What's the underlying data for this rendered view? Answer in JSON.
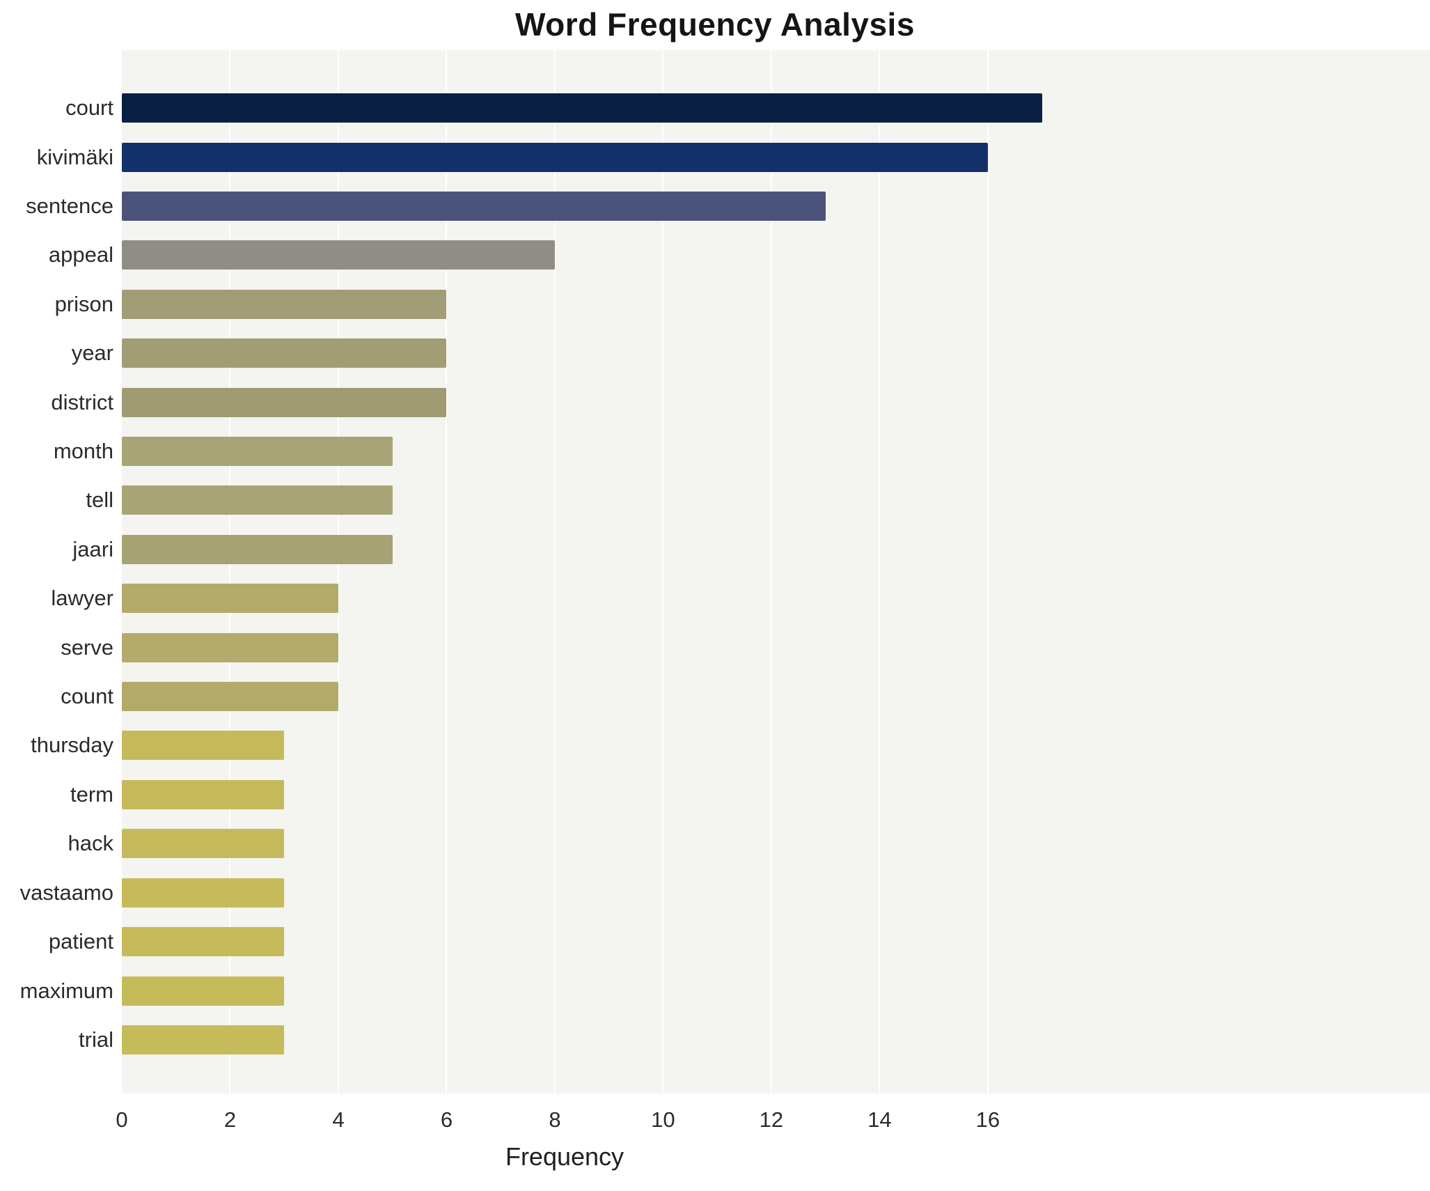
{
  "chart_data": {
    "type": "bar",
    "orientation": "horizontal",
    "title": "Word Frequency Analysis",
    "xlabel": "Frequency",
    "ylabel": "",
    "grid": true,
    "legend": "none",
    "xlim": [
      0,
      24
    ],
    "xticks": [
      0,
      2,
      4,
      6,
      8,
      10,
      12,
      14,
      16
    ],
    "categories": [
      "court",
      "kivimäki",
      "sentence",
      "appeal",
      "prison",
      "year",
      "district",
      "month",
      "tell",
      "jaari",
      "lawyer",
      "serve",
      "count",
      "thursday",
      "term",
      "hack",
      "vastaamo",
      "patient",
      "maximum",
      "trial"
    ],
    "values": [
      17,
      16,
      13,
      8,
      6,
      6,
      6,
      5,
      5,
      5,
      4,
      4,
      4,
      3,
      3,
      3,
      3,
      3,
      3,
      3
    ],
    "colors": [
      "#0a1f44",
      "#13306b",
      "#4b537b",
      "#8f8d85",
      "#a29d75",
      "#a29d75",
      "#a09b73",
      "#a9a476",
      "#a9a476",
      "#a7a274",
      "#b2ab6b",
      "#b2ab6b",
      "#b1aa69",
      "#c5ba5b",
      "#c5ba5b",
      "#c5ba5b",
      "#c6bb5a",
      "#c6bb5a",
      "#c6bb5a",
      "#c6bb5a"
    ],
    "plot_background": "#f4f4f1",
    "gridline_color": "#ffffff",
    "title_color": "#151515",
    "tick_label_color": "#2b2b2b"
  }
}
